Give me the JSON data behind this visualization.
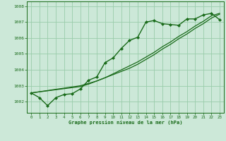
{
  "background_color": "#cce8d8",
  "grid_color": "#99ccaa",
  "line_color": "#1a6b1a",
  "marker_color": "#1a6b1a",
  "xlabel": "Graphe pression niveau de la mer (hPa)",
  "xlim": [
    -0.5,
    23.5
  ],
  "ylim": [
    1001.3,
    1008.3
  ],
  "yticks": [
    1002,
    1003,
    1004,
    1005,
    1006,
    1007,
    1008
  ],
  "xticks": [
    0,
    1,
    2,
    3,
    4,
    5,
    6,
    7,
    8,
    9,
    10,
    11,
    12,
    13,
    14,
    15,
    16,
    17,
    18,
    19,
    20,
    21,
    22,
    23
  ],
  "series1_x": [
    0,
    1,
    2,
    3,
    4,
    5,
    6,
    7,
    8,
    9,
    10,
    11,
    12,
    13,
    14,
    15,
    16,
    17,
    18,
    19,
    20,
    21,
    22,
    23
  ],
  "series1_y": [
    1002.55,
    1002.25,
    1001.75,
    1002.25,
    1002.45,
    1002.5,
    1002.8,
    1003.35,
    1003.55,
    1004.45,
    1004.75,
    1005.35,
    1005.85,
    1006.05,
    1007.0,
    1007.1,
    1006.9,
    1006.85,
    1006.8,
    1007.2,
    1007.2,
    1007.45,
    1007.55,
    1007.15
  ],
  "series2_x": [
    0,
    6,
    7,
    8,
    9,
    10,
    11,
    12,
    13,
    14,
    15,
    16,
    17,
    18,
    19,
    20,
    21,
    22,
    23
  ],
  "series2_y": [
    1002.55,
    1003.0,
    1003.15,
    1003.3,
    1003.5,
    1003.7,
    1003.9,
    1004.1,
    1004.35,
    1004.65,
    1004.95,
    1005.3,
    1005.6,
    1005.95,
    1006.25,
    1006.6,
    1006.9,
    1007.25,
    1007.5
  ],
  "series3_x": [
    0,
    6,
    7,
    8,
    9,
    10,
    11,
    12,
    13,
    14,
    15,
    16,
    17,
    18,
    19,
    20,
    21,
    22,
    23
  ],
  "series3_y": [
    1002.55,
    1002.95,
    1003.1,
    1003.3,
    1003.5,
    1003.75,
    1004.0,
    1004.25,
    1004.5,
    1004.8,
    1005.1,
    1005.45,
    1005.75,
    1006.1,
    1006.4,
    1006.75,
    1007.05,
    1007.4,
    1007.55
  ]
}
